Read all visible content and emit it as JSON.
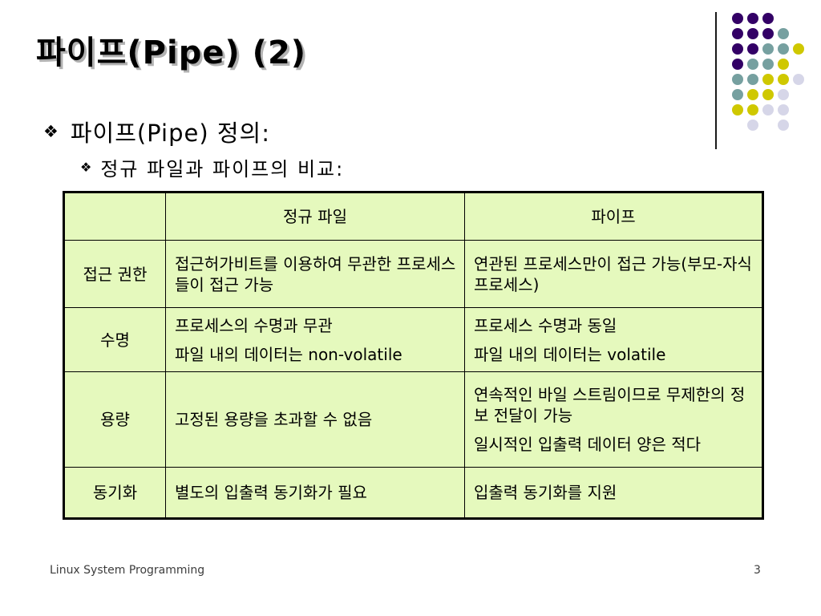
{
  "slide": {
    "title": "파이프(Pipe) (2)",
    "bullets": [
      {
        "marker": "❖",
        "text": "파이프(Pipe) 정의:"
      },
      {
        "marker": "❖",
        "text": "정규 파일과 파이프의 비교:"
      }
    ]
  },
  "table": {
    "header": {
      "col_label": "",
      "col_regular": "정규 파일",
      "col_pipe": "파이프"
    },
    "rows": [
      {
        "label": "접근 권한",
        "regular": [
          "접근허가비트를 이용하여 무관한 프로세스들이 접근 가능"
        ],
        "pipe": [
          "연관된 프로세스만이 접근 가능(부모-자식 프로세스)"
        ]
      },
      {
        "label": "수명",
        "regular": [
          "프로세스의 수명과 무관",
          "파일 내의 데이터는 non-volatile"
        ],
        "pipe": [
          "프로세스 수명과 동일",
          "파일 내의 데이터는 volatile"
        ]
      },
      {
        "label": "용량",
        "regular": [
          "고정된 용량을 초과할 수 없음"
        ],
        "pipe": [
          "연속적인 바일 스트림이므로 무제한의 정보 전달이 가능",
          "일시적인 입출력 데이터 양은 적다"
        ]
      },
      {
        "label": "동기화",
        "regular": [
          "별도의 입출력 동기화가 필요"
        ],
        "pipe": [
          "입출력 동기화를 지원"
        ]
      }
    ],
    "colors": {
      "background": "#e5f9bd",
      "border": "#000000"
    }
  },
  "footer": {
    "left": "Linux System Programming",
    "page_number": "3"
  },
  "decoration": {
    "pattern": [
      "PPP..",
      "PPPT.",
      "PPTTY",
      "PTTY.",
      "TTYYL",
      "TYYL.",
      "YYLL.",
      ".L.L."
    ],
    "colors": {
      "P": "#330066",
      "T": "#76a0a0",
      "Y": "#cfc800",
      "L": "#d6d6e8"
    },
    "line_color": "#1a1a1a"
  }
}
